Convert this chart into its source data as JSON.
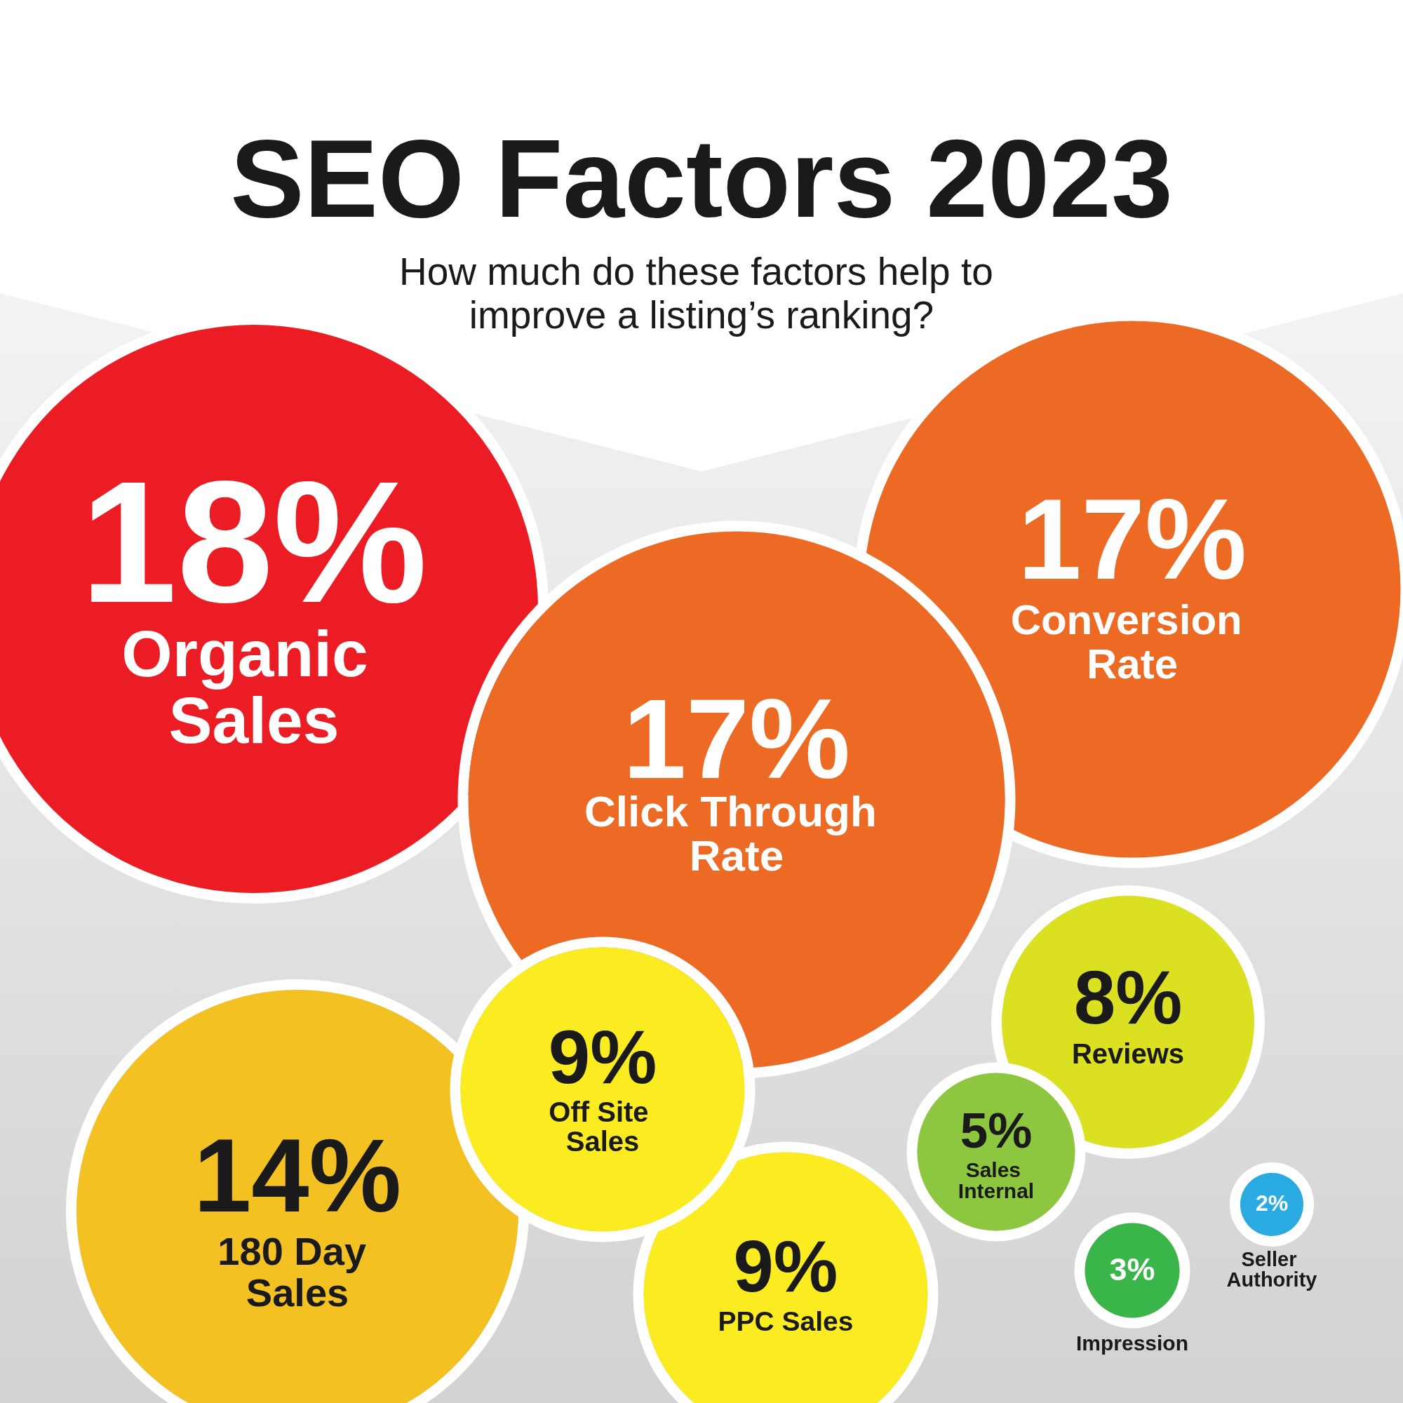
{
  "chart_data": {
    "type": "other",
    "title": "SEO Factors 2023",
    "subtitle": "How much do these factors help to improve a listing’s ranking?",
    "categories": [
      "Organic Sales",
      "Click Through Rate",
      "Conversion Rate",
      "180 Day Sales",
      "Off Site Sales",
      "PPC Sales",
      "Reviews",
      "Sales Internal",
      "Impression",
      "Seller Authority"
    ],
    "values": [
      18,
      17,
      17,
      14,
      9,
      9,
      8,
      5,
      3,
      2
    ],
    "value_labels": [
      "18%",
      "17%",
      "17%",
      "14%",
      "9%",
      "9%",
      "8%",
      "5%",
      "3%",
      "2%"
    ],
    "colors": [
      "#ec1c24",
      "#ec6a24",
      "#ec6a24",
      "#f4c123",
      "#fbec21",
      "#fbec21",
      "#dbe021",
      "#8dc63f",
      "#39b54a",
      "#29abe2"
    ]
  }
}
